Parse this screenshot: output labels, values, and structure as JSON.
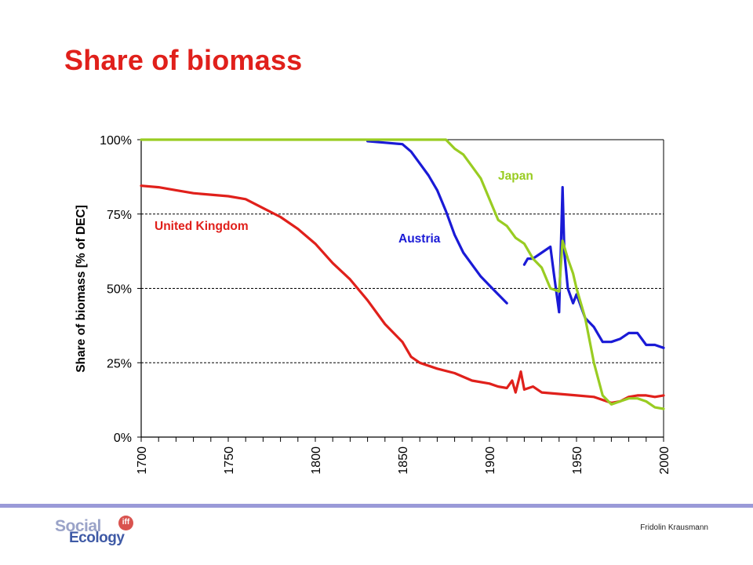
{
  "slide": {
    "title": "Share of biomass",
    "author": "Fridolin Krausmann"
  },
  "logo": {
    "line1": "Social",
    "line2": "Ecology",
    "badge": "iff"
  },
  "colors": {
    "title": "#e0201b",
    "uk": "#e0201b",
    "austria": "#1a1ad6",
    "japan": "#99cc22",
    "footer_line": "#9a9ad8"
  },
  "chart_data": {
    "type": "line",
    "title": "",
    "xlabel": "",
    "ylabel": "Share of biomass [% of DEC]",
    "xlim": [
      1700,
      2000
    ],
    "ylim": [
      0,
      100
    ],
    "x_ticks": [
      "1700",
      "1750",
      "1800",
      "1850",
      "1900",
      "1950",
      "2000"
    ],
    "y_ticks": [
      "0%",
      "25%",
      "50%",
      "75%",
      "100%"
    ],
    "grid": "horizontal dashed",
    "series": [
      {
        "name": "United Kingdom",
        "x": [
          1700,
          1710,
          1720,
          1730,
          1740,
          1750,
          1760,
          1770,
          1780,
          1790,
          1800,
          1810,
          1820,
          1830,
          1840,
          1845,
          1850,
          1855,
          1860,
          1870,
          1880,
          1890,
          1900,
          1905,
          1910,
          1913,
          1915,
          1918,
          1920,
          1925,
          1930,
          1940,
          1950,
          1960,
          1965,
          1970,
          1975,
          1980,
          1985,
          1990,
          1995,
          2000
        ],
        "values": [
          84.5,
          84,
          83,
          82,
          81.5,
          81,
          80,
          77,
          74,
          70,
          65,
          58.5,
          53,
          46,
          38,
          35,
          32,
          27,
          25,
          23,
          21.5,
          19,
          18,
          17,
          16.5,
          19,
          15,
          22,
          16,
          17,
          15,
          14.5,
          14,
          13.5,
          12.5,
          11.5,
          12,
          13.5,
          14,
          14,
          13.5,
          14
        ]
      },
      {
        "name": "Austria",
        "x": [
          1830,
          1840,
          1850,
          1855,
          1860,
          1865,
          1870,
          1875,
          1880,
          1885,
          1890,
          1895,
          1900,
          1905,
          1910,
          null,
          1920,
          1922,
          1925,
          1930,
          1935,
          1937,
          1940,
          1942,
          1943,
          1945,
          1948,
          1950,
          1955,
          1960,
          1965,
          1970,
          1975,
          1980,
          1985,
          1990,
          1995,
          2000
        ],
        "values": [
          99.5,
          99,
          98.5,
          96,
          92,
          88,
          83,
          76,
          68,
          62,
          58,
          54,
          51,
          48,
          45,
          null,
          58,
          60,
          60,
          62,
          64,
          55,
          42,
          84,
          62,
          50,
          45,
          48,
          40,
          37,
          32,
          32,
          33,
          35,
          35,
          31,
          31,
          30
        ]
      },
      {
        "name": "Japan",
        "x": [
          1700,
          1875,
          1880,
          1885,
          1890,
          1895,
          1900,
          1905,
          1910,
          1915,
          1920,
          1925,
          1930,
          1935,
          1940,
          1942,
          1945,
          1948,
          1950,
          1955,
          1960,
          1965,
          1970,
          1975,
          1980,
          1985,
          1990,
          1995,
          2000
        ],
        "values": [
          100,
          100,
          97,
          95,
          91,
          87,
          80,
          73,
          71,
          67,
          65,
          60,
          57,
          50,
          49,
          66,
          60,
          55,
          50,
          40,
          25,
          14,
          11,
          12,
          13,
          13,
          12,
          10,
          9.5
        ]
      }
    ],
    "annotations": [
      {
        "text": "United Kingdom",
        "series": "United Kingdom"
      },
      {
        "text": "Austria",
        "series": "Austria"
      },
      {
        "text": "Japan",
        "series": "Japan"
      }
    ]
  }
}
